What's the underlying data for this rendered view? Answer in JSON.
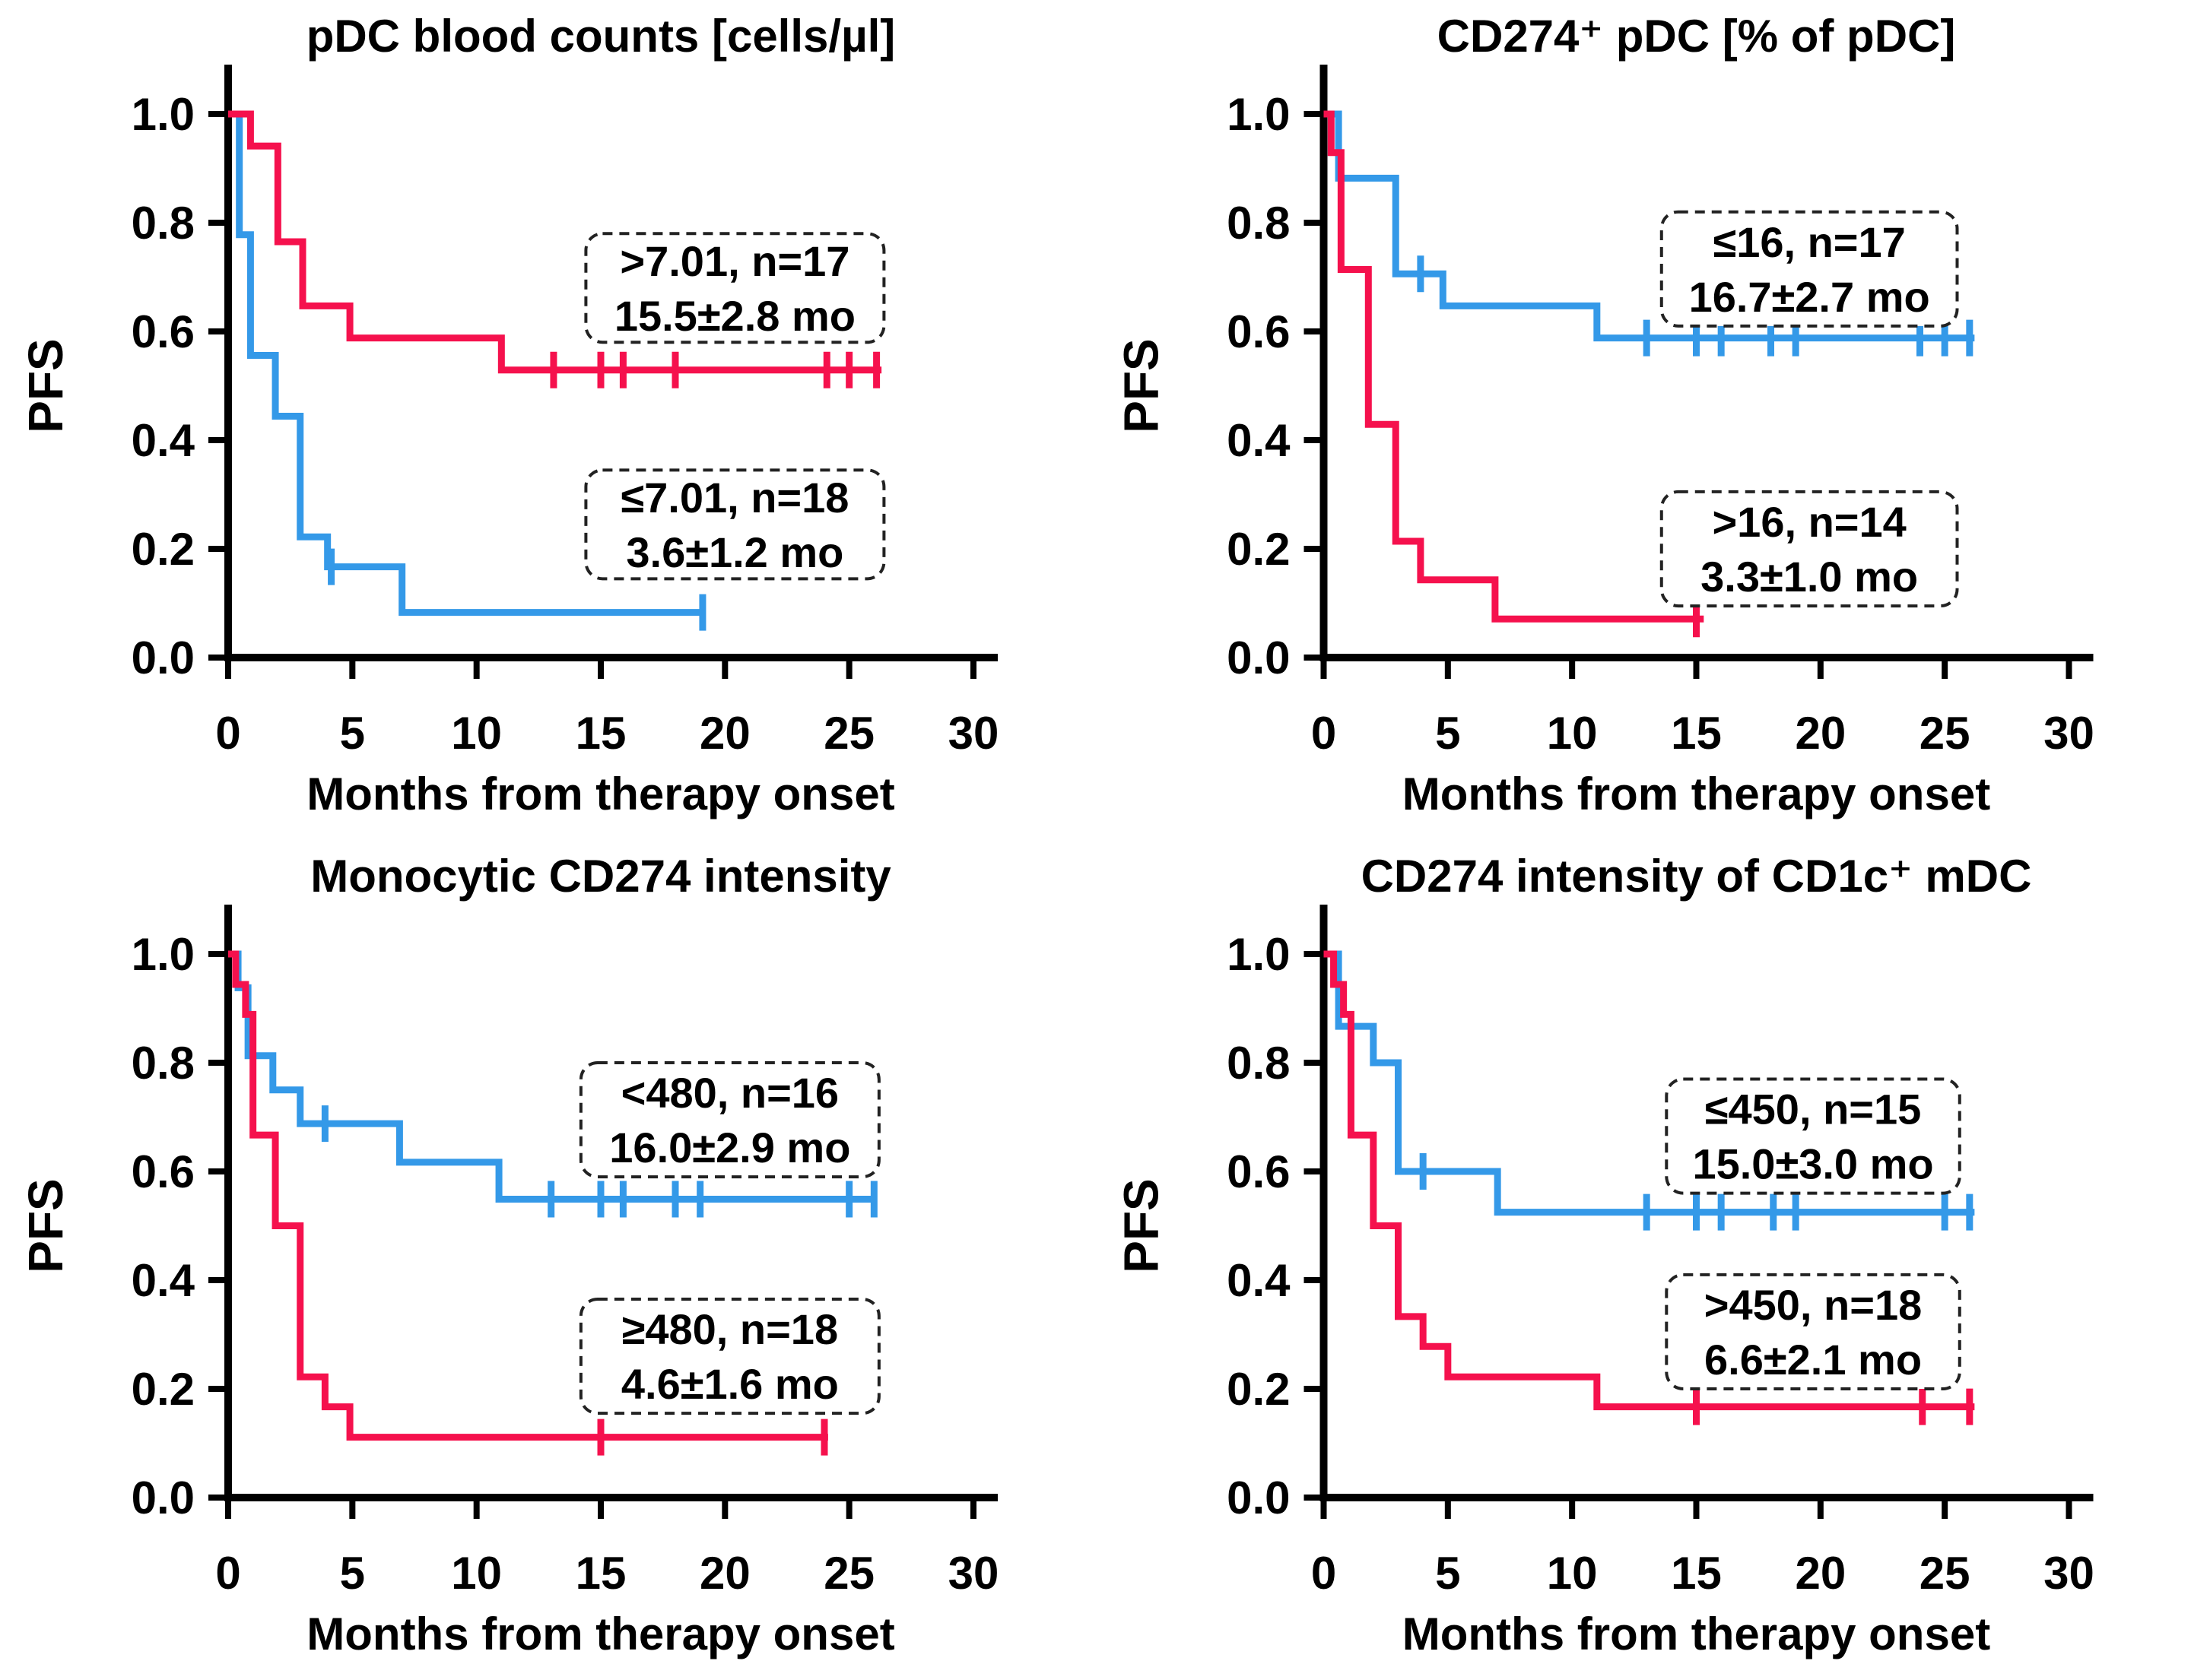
{
  "figure": {
    "background": "#ffffff",
    "xlabel": "Months from therapy onset",
    "ylabel": "PFS",
    "x_ticks": [
      0,
      5,
      10,
      15,
      20,
      25,
      30
    ],
    "y_ticks": [
      {
        "value": 0.0,
        "label": "0.0"
      },
      {
        "value": 0.2,
        "label": "0.2"
      },
      {
        "value": 0.4,
        "label": "0.4"
      },
      {
        "value": 0.6,
        "label": "0.6"
      },
      {
        "value": 0.8,
        "label": "0.8"
      },
      {
        "value": 1.0,
        "label": "1.0"
      }
    ],
    "colors": {
      "red": "#F5114D",
      "blue": "#3499E8",
      "axis": "#000000"
    }
  },
  "chart_data": [
    {
      "type": "line",
      "kind": "kaplan-meier-step",
      "title": "pDC blood counts [cells/µl]",
      "xlabel": "Months from therapy onset",
      "ylabel": "PFS",
      "xlim": [
        0,
        30
      ],
      "ylim": [
        0,
        1
      ],
      "grid": false,
      "series": [
        {
          "color_name": "blue",
          "color": "#3499E8",
          "label_line1": "≤7.01, n=18",
          "label_line2": "3.6±1.2 mo",
          "steps_x": [
            0,
            0.45,
            0.9,
            1.9,
            2.9,
            4.0,
            7.0
          ],
          "steps_y": [
            1.0,
            0.778,
            0.556,
            0.444,
            0.222,
            0.167,
            0.083
          ],
          "end_x": 19.2,
          "censors": [
            [
              4.15,
              0.167
            ],
            [
              19.1,
              0.083
            ]
          ],
          "box": {
            "x0": 14.4,
            "x1": 26.4,
            "y0": 0.145,
            "y1": 0.345
          }
        },
        {
          "color_name": "red",
          "color": "#F5114D",
          "label_line1": ">7.01, n=17",
          "label_line2": "15.5±2.8 mo",
          "steps_x": [
            0,
            0.9,
            2.0,
            3.0,
            4.9,
            11.0
          ],
          "steps_y": [
            1.0,
            0.941,
            0.765,
            0.647,
            0.588,
            0.529
          ],
          "end_x": 26.3,
          "censors": [
            [
              13.1,
              0.529
            ],
            [
              15.0,
              0.529
            ],
            [
              15.9,
              0.529
            ],
            [
              18.0,
              0.529
            ],
            [
              24.1,
              0.529
            ],
            [
              25.0,
              0.529
            ],
            [
              26.1,
              0.529
            ]
          ],
          "box": {
            "x0": 14.4,
            "x1": 26.4,
            "y0": 0.58,
            "y1": 0.78
          }
        }
      ]
    },
    {
      "type": "line",
      "kind": "kaplan-meier-step",
      "title": "CD274⁺ pDC [% of pDC]",
      "xlabel": "Months from therapy onset",
      "ylabel": "PFS",
      "xlim": [
        0,
        30
      ],
      "ylim": [
        0,
        1
      ],
      "grid": false,
      "series": [
        {
          "color_name": "blue",
          "color": "#3499E8",
          "label_line1": "≤16, n=17",
          "label_line2": "16.7±2.7 mo",
          "steps_x": [
            0,
            0.6,
            2.9,
            4.8,
            11.0
          ],
          "steps_y": [
            1.0,
            0.882,
            0.706,
            0.647,
            0.588
          ],
          "end_x": 26.2,
          "censors": [
            [
              3.9,
              0.706
            ],
            [
              13.0,
              0.588
            ],
            [
              15.0,
              0.588
            ],
            [
              16.0,
              0.588
            ],
            [
              18.0,
              0.588
            ],
            [
              19.0,
              0.588
            ],
            [
              24.0,
              0.588
            ],
            [
              25.0,
              0.588
            ],
            [
              26.0,
              0.588
            ]
          ],
          "box": {
            "x0": 13.6,
            "x1": 25.5,
            "y0": 0.61,
            "y1": 0.82
          }
        },
        {
          "color_name": "red",
          "color": "#F5114D",
          "label_line1": ">16, n=14",
          "label_line2": "3.3±1.0 mo",
          "steps_x": [
            0,
            0.3,
            0.7,
            1.8,
            2.9,
            3.9,
            6.9
          ],
          "steps_y": [
            1.0,
            0.929,
            0.714,
            0.429,
            0.214,
            0.143,
            0.071
          ],
          "end_x": 15.3,
          "censors": [
            [
              15.0,
              0.071
            ]
          ],
          "box": {
            "x0": 13.6,
            "x1": 25.5,
            "y0": 0.095,
            "y1": 0.305
          }
        }
      ]
    },
    {
      "type": "line",
      "kind": "kaplan-meier-step",
      "title": "Monocytic CD274 intensity",
      "xlabel": "Months from therapy onset",
      "ylabel": "PFS",
      "xlim": [
        0,
        30
      ],
      "ylim": [
        0,
        1
      ],
      "grid": false,
      "series": [
        {
          "color_name": "blue",
          "color": "#3499E8",
          "label_line1": "<480, n=16",
          "label_line2": "16.0±2.9 mo",
          "steps_x": [
            0,
            0.4,
            0.8,
            1.8,
            2.9,
            6.9,
            10.9
          ],
          "steps_y": [
            1.0,
            0.938,
            0.813,
            0.75,
            0.688,
            0.617,
            0.549
          ],
          "end_x": 26.1,
          "censors": [
            [
              3.9,
              0.688
            ],
            [
              13.0,
              0.549
            ],
            [
              15.0,
              0.549
            ],
            [
              15.9,
              0.549
            ],
            [
              18.0,
              0.549
            ],
            [
              19.0,
              0.549
            ],
            [
              25.0,
              0.549
            ],
            [
              26.0,
              0.549
            ]
          ],
          "box": {
            "x0": 14.2,
            "x1": 26.2,
            "y0": 0.59,
            "y1": 0.8
          }
        },
        {
          "color_name": "red",
          "color": "#F5114D",
          "label_line1": "≥480, n=18",
          "label_line2": "4.6±1.6 mo",
          "steps_x": [
            0,
            0.3,
            0.7,
            1.0,
            1.9,
            2.9,
            3.9,
            4.9
          ],
          "steps_y": [
            1.0,
            0.944,
            0.889,
            0.667,
            0.5,
            0.222,
            0.167,
            0.111
          ],
          "end_x": 24.15,
          "censors": [
            [
              15.0,
              0.111
            ],
            [
              24.0,
              0.111
            ]
          ],
          "box": {
            "x0": 14.2,
            "x1": 26.2,
            "y0": 0.155,
            "y1": 0.365
          }
        }
      ]
    },
    {
      "type": "line",
      "kind": "kaplan-meier-step",
      "title": "CD274 intensity of CD1c⁺ mDC",
      "xlabel": "Months from therapy onset",
      "ylabel": "PFS",
      "xlim": [
        0,
        30
      ],
      "ylim": [
        0,
        1
      ],
      "grid": false,
      "series": [
        {
          "color_name": "blue",
          "color": "#3499E8",
          "label_line1": "≤450, n=15",
          "label_line2": "15.0±3.0 mo",
          "steps_x": [
            0,
            0.6,
            2.0,
            3.0,
            7.0
          ],
          "steps_y": [
            1.0,
            0.867,
            0.8,
            0.6,
            0.525
          ],
          "end_x": 26.2,
          "censors": [
            [
              4.0,
              0.6
            ],
            [
              13.0,
              0.525
            ],
            [
              15.0,
              0.525
            ],
            [
              16.0,
              0.525
            ],
            [
              18.1,
              0.525
            ],
            [
              19.0,
              0.525
            ],
            [
              25.0,
              0.525
            ],
            [
              26.0,
              0.525
            ]
          ],
          "box": {
            "x0": 13.8,
            "x1": 25.6,
            "y0": 0.56,
            "y1": 0.77
          }
        },
        {
          "color_name": "red",
          "color": "#F5114D",
          "label_line1": ">450, n=18",
          "label_line2": "6.6±2.1 mo",
          "steps_x": [
            0,
            0.4,
            0.8,
            1.1,
            2.0,
            3.0,
            4.0,
            5.0,
            11.0
          ],
          "steps_y": [
            1.0,
            0.944,
            0.889,
            0.667,
            0.5,
            0.333,
            0.278,
            0.222,
            0.167
          ],
          "end_x": 26.2,
          "censors": [
            [
              15.0,
              0.167
            ],
            [
              24.1,
              0.167
            ],
            [
              26.0,
              0.167
            ]
          ],
          "box": {
            "x0": 13.8,
            "x1": 25.6,
            "y0": 0.2,
            "y1": 0.41
          }
        }
      ]
    }
  ]
}
